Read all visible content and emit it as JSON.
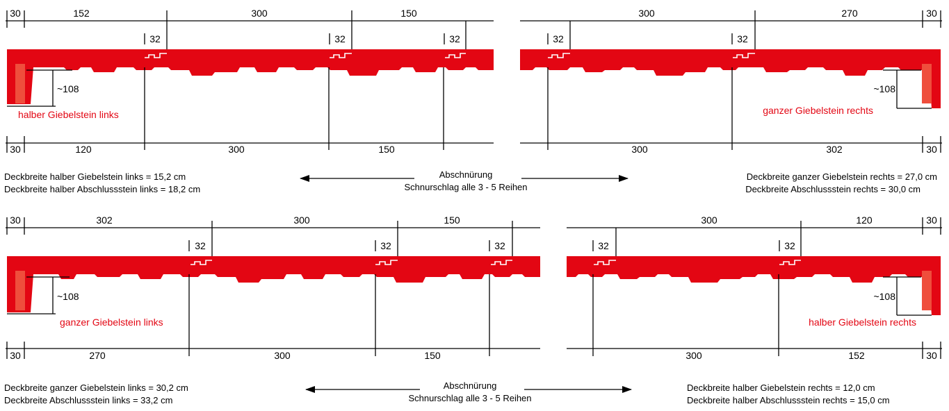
{
  "colors": {
    "tile": "#e30613",
    "tile_lip": "#ef4e3c",
    "line": "#000000",
    "label": "#e30613"
  },
  "top_row": {
    "left": {
      "top_dims": [
        "30",
        "152",
        "300",
        "150"
      ],
      "overlaps": [
        "32",
        "32",
        "32"
      ],
      "height": "~108",
      "label": "halber Giebelstein links",
      "bottom_dims": [
        "30",
        "120",
        "300",
        "150"
      ]
    },
    "right": {
      "top_dims": [
        "300",
        "270",
        "30"
      ],
      "overlaps": [
        "32",
        "32"
      ],
      "height": "~108",
      "label": "ganzer Giebelstein rechts",
      "bottom_dims": [
        "300",
        "302",
        "30"
      ]
    },
    "caption_left": [
      "Deckbreite halber Giebelstein links = 15,2 cm",
      "Deckbreite halber Abschlussstein links = 18,2 cm"
    ],
    "caption_center": [
      "Abschnürung",
      "Schnurschlag alle 3 - 5 Reihen"
    ],
    "caption_right": [
      "Deckbreite ganzer Giebelstein rechts = 27,0 cm",
      "Deckbreite Abschlussstein rechts = 30,0 cm"
    ]
  },
  "bottom_row": {
    "left": {
      "top_dims": [
        "30",
        "302",
        "300",
        "150"
      ],
      "overlaps": [
        "32",
        "32",
        "32"
      ],
      "height": "~108",
      "label": "ganzer Giebelstein links",
      "bottom_dims": [
        "30",
        "270",
        "300",
        "150"
      ]
    },
    "right": {
      "top_dims": [
        "300",
        "120",
        "30"
      ],
      "overlaps": [
        "32",
        "32"
      ],
      "height": "~108",
      "label": "halber Giebelstein rechts",
      "bottom_dims": [
        "300",
        "152",
        "30"
      ]
    },
    "caption_left": [
      "Deckbreite ganzer Giebelstein links = 30,2 cm",
      "Deckbreite Abschlussstein links = 33,2 cm"
    ],
    "caption_center": [
      "Abschnürung",
      "Schnurschlag alle 3 - 5 Reihen"
    ],
    "caption_right": [
      "Deckbreite halber Giebelstein rechts = 12,0 cm",
      "Deckbreite halber Abschlussstein rechts = 15,0 cm"
    ]
  }
}
